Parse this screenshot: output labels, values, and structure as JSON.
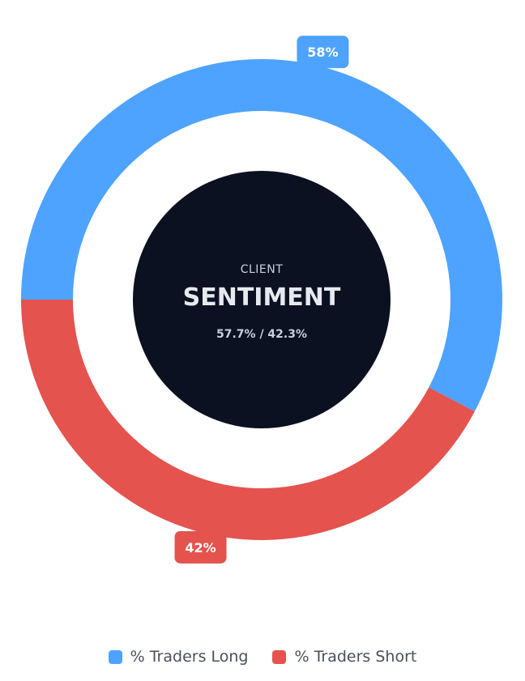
{
  "chart_data": {
    "type": "pie",
    "subtype": "donut",
    "categories": [
      "% Traders Long",
      "% Traders Short"
    ],
    "values": [
      57.7,
      42.3
    ],
    "data_labels": [
      "58%",
      "42%"
    ],
    "colors": [
      "#4da3ff",
      "#e5534f"
    ],
    "center": {
      "subtitle": "CLIENT",
      "title": "SENTIMENT",
      "ratio_text": "57.7% / 42.3%",
      "background": "#0b1120"
    },
    "legend": {
      "position": "bottom",
      "items": [
        {
          "label": "% Traders Long",
          "color": "#4da3ff"
        },
        {
          "label": "% Traders Short",
          "color": "#e5534f"
        }
      ]
    }
  }
}
